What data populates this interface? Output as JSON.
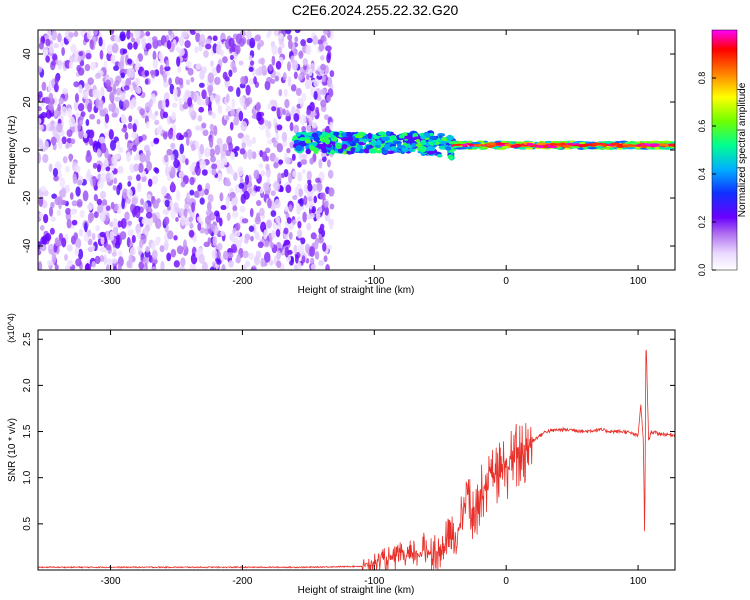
{
  "title": "C2E6.2024.255.22.32.G20",
  "chart_data": [
    {
      "type": "heatmap",
      "xlabel": "Height of straight line (km)",
      "ylabel": "Frequency (Hz)",
      "xlim": [
        -355,
        128
      ],
      "ylim": [
        -50,
        50
      ],
      "x_ticks": [
        -300,
        -200,
        -100,
        0,
        100
      ],
      "y_ticks": [
        -40,
        -20,
        0,
        20,
        40
      ],
      "colorbar": {
        "label": "Normalized spectral amplitude",
        "ticks": [
          "0.0",
          "0.2",
          "0.4",
          "0.6",
          "0.8"
        ],
        "range": [
          0,
          1
        ],
        "colormap": [
          "#ffffff",
          "#d8c6f3",
          "#7a2bdc",
          "#2e10ff",
          "#00b7ff",
          "#00ff90",
          "#7aff00",
          "#ffff00",
          "#ff8000",
          "#ff0000",
          "#ff00ff"
        ]
      },
      "regions": [
        {
          "x_range": [
            -355,
            -132
          ],
          "description_level": "noise",
          "amplitude_range": [
            0.0,
            0.25
          ],
          "freq_range": [
            -50,
            50
          ]
        },
        {
          "x_range": [
            -160,
            -40
          ],
          "centre_freq": 3,
          "spread_hz": 8,
          "amplitude_range": [
            0.2,
            0.6
          ]
        },
        {
          "x_range": [
            -40,
            128
          ],
          "centre_freq": 2,
          "spread_hz": 3,
          "amplitude_range": [
            0.4,
            1.0
          ]
        }
      ]
    },
    {
      "type": "line",
      "xlabel": "Height of straight line (km)",
      "ylabel": "SNR (10 * v/v)",
      "y_multiplier": "(x10^4)",
      "xlim": [
        -355,
        128
      ],
      "ylim": [
        0,
        2.6
      ],
      "x_ticks": [
        -300,
        -200,
        -100,
        0,
        100
      ],
      "y_ticks": [
        0.5,
        1.0,
        1.5,
        2.0,
        2.5
      ],
      "y_tick_labels": [
        "0.5",
        "1.0",
        "1.5",
        "2.0",
        "2.5"
      ],
      "series": [
        {
          "color": "#e8302a",
          "x": [
            -355,
            -250,
            -150,
            -110,
            -100,
            -90,
            -80,
            -70,
            -60,
            -55,
            -50,
            -45,
            -40,
            -35,
            -30,
            -25,
            -20,
            -15,
            -10,
            -5,
            0,
            10,
            20,
            25,
            30,
            40,
            50,
            60,
            70,
            80,
            90,
            95,
            100,
            102,
            104,
            105,
            106,
            108,
            110,
            115,
            120,
            128
          ],
          "y": [
            0.03,
            0.03,
            0.03,
            0.04,
            0.08,
            0.12,
            0.14,
            0.15,
            0.22,
            0.18,
            0.2,
            0.3,
            0.35,
            0.45,
            0.9,
            0.55,
            0.8,
            0.95,
            1.0,
            1.05,
            1.12,
            1.25,
            1.4,
            1.45,
            1.5,
            1.52,
            1.52,
            1.5,
            1.52,
            1.5,
            1.5,
            1.48,
            1.45,
            1.8,
            1.4,
            0.3,
            2.55,
            1.4,
            1.5,
            1.48,
            1.47,
            1.46
          ]
        }
      ]
    }
  ]
}
